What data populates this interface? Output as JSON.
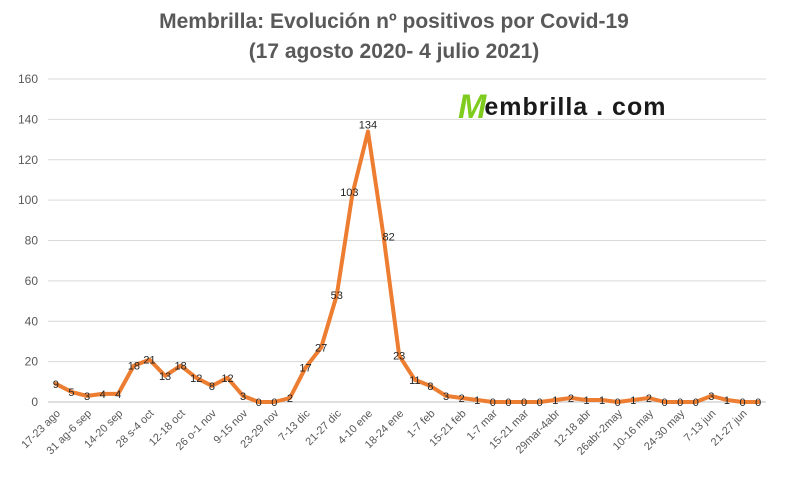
{
  "title_line1": "Membrilla: Evolución nº positivos por Covid-19",
  "title_line2": "(17 agosto 2020- 4 julio 2021)",
  "logo": {
    "mark": "M",
    "text": "embrilla . com",
    "mark_color": "#7fcc1f"
  },
  "chart_data": {
    "type": "line",
    "title": "Membrilla: Evolución nº positivos por Covid-19 (17 agosto 2020- 4 julio 2021)",
    "xlabel": "",
    "ylabel": "",
    "ylim": [
      0,
      160
    ],
    "yticks": [
      0,
      20,
      40,
      60,
      80,
      100,
      120,
      140,
      160
    ],
    "grid": true,
    "legend": "none",
    "line_color": "#ed7d31",
    "x": [
      "17-23 ago",
      "24-30 ago",
      "31 ag-6 sep",
      "7-13 sep",
      "14-20 sep",
      "21-27 sep",
      "28 s-4 oct",
      "5-11 oct",
      "12-18 oct",
      "19-25 oct",
      "26 o-1 nov",
      "2-8 nov",
      "9-15 nov",
      "16-22 nov",
      "23-29 nov",
      "30 nov-6 dic",
      "7-13 dic",
      "14-20 dic",
      "21-27 dic",
      "28 dic-3 ene",
      "4-10 ene",
      "11-17 ene",
      "18-24 ene",
      "25-31 ene",
      "1-7 feb",
      "8-14 feb",
      "15-21 feb",
      "22-28 feb",
      "1-7 mar",
      "8-14 mar",
      "15-21 mar",
      "22-28 mar",
      "29mar-4abr",
      "5-11 abr",
      "12-18 abr",
      "19-25 abr",
      "26abr-2may",
      "3-9 may",
      "10-16 may",
      "17-23 may",
      "24-30 may",
      "31 may-6 jun",
      "7-13 jun",
      "14-20 jun",
      "21-27 jun",
      "28 jun-4 jul"
    ],
    "x_tick_labels": [
      "17-23 ago",
      "31 ag-6 sep",
      "14-20 sep",
      "28 s-4 oct",
      "12-18 oct",
      "26 o-1 nov",
      "9-15 nov",
      "23-29 nov",
      "7-13 dic",
      "21-27 dic",
      "4-10 ene",
      "18-24 ene",
      "1-7 feb",
      "15-21 feb",
      "1-7 mar",
      "15-21 mar",
      "29mar-4abr",
      "12-18 abr",
      "26abr-2may",
      "10-16 may",
      "24-30 may",
      "7-13 jun",
      "21-27 jun"
    ],
    "series": [
      {
        "values": [
          9,
          5,
          3,
          4,
          4,
          18,
          21,
          13,
          18,
          12,
          8,
          12,
          3,
          0,
          0,
          2,
          17,
          27,
          53,
          103,
          134,
          82,
          23,
          11,
          8,
          3,
          2,
          1,
          0,
          0,
          0,
          0,
          1,
          2,
          1,
          1,
          0,
          1,
          2,
          0,
          0,
          0,
          3,
          1,
          0,
          0
        ]
      }
    ]
  }
}
